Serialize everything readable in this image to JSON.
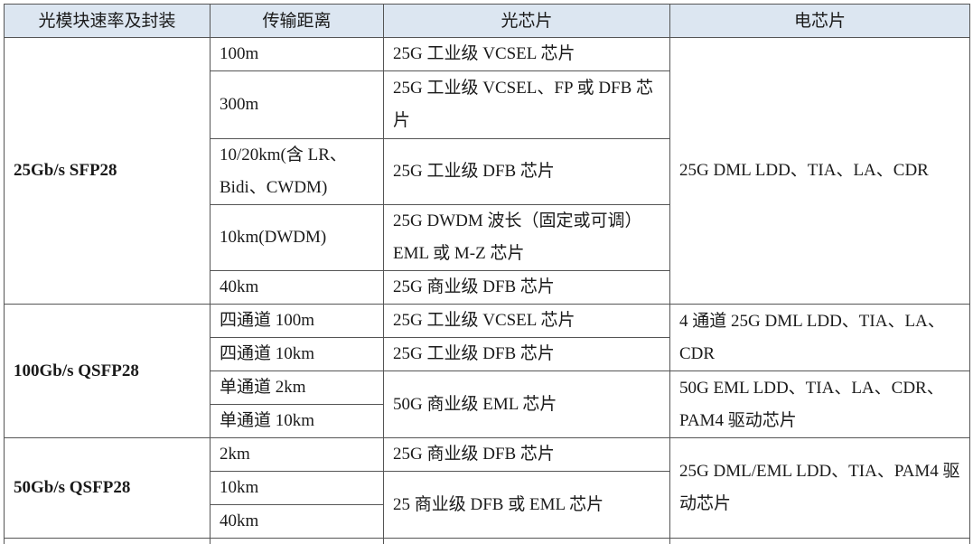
{
  "headers": [
    "光模块速率及封装",
    "传输距离",
    "光芯片",
    "电芯片"
  ],
  "groups": [
    {
      "package": "25Gb/s SFP28",
      "rows": [
        {
          "distance": "100m",
          "optical": "25G 工业级 VCSEL 芯片"
        },
        {
          "distance": "300m",
          "optical": "25G 工业级 VCSEL、FP 或 DFB 芯片"
        },
        {
          "distance": "10/20km(含 LR、Bidi、CWDM)",
          "optical": "25G 工业级 DFB 芯片"
        },
        {
          "distance": "10km(DWDM)",
          "optical": "25G DWDM 波长（固定或可调）EML 或 M-Z 芯片"
        },
        {
          "distance": "40km",
          "optical": "25G 商业级 DFB 芯片"
        }
      ],
      "electrical": [
        "25G DML LDD、TIA、LA、CDR"
      ]
    },
    {
      "package": "100Gb/s QSFP28",
      "rows": [
        {
          "distance": "四通道 100m",
          "optical": "25G 工业级 VCSEL 芯片"
        },
        {
          "distance": "四通道 10km",
          "optical": "25G 工业级  DFB 芯片"
        },
        {
          "distance": "单通道 2km",
          "optical": "50G 商业级 EML 芯片"
        },
        {
          "distance": "单通道 10km"
        }
      ],
      "electrical": [
        "4 通道 25G DML LDD、TIA、LA、CDR",
        "50G EML LDD、TIA、LA、CDR、PAM4 驱动芯片"
      ]
    },
    {
      "package": "50Gb/s QSFP28",
      "rows": [
        {
          "distance": "2km",
          "optical": "25G 商业级 DFB 芯片"
        },
        {
          "distance": "10km",
          "optical": "25 商业级 DFB 或 EML 芯片"
        },
        {
          "distance": "40km"
        }
      ],
      "electrical": [
        "25G DML/EML LDD、TIA、PAM4 驱动芯片"
      ]
    }
  ]
}
